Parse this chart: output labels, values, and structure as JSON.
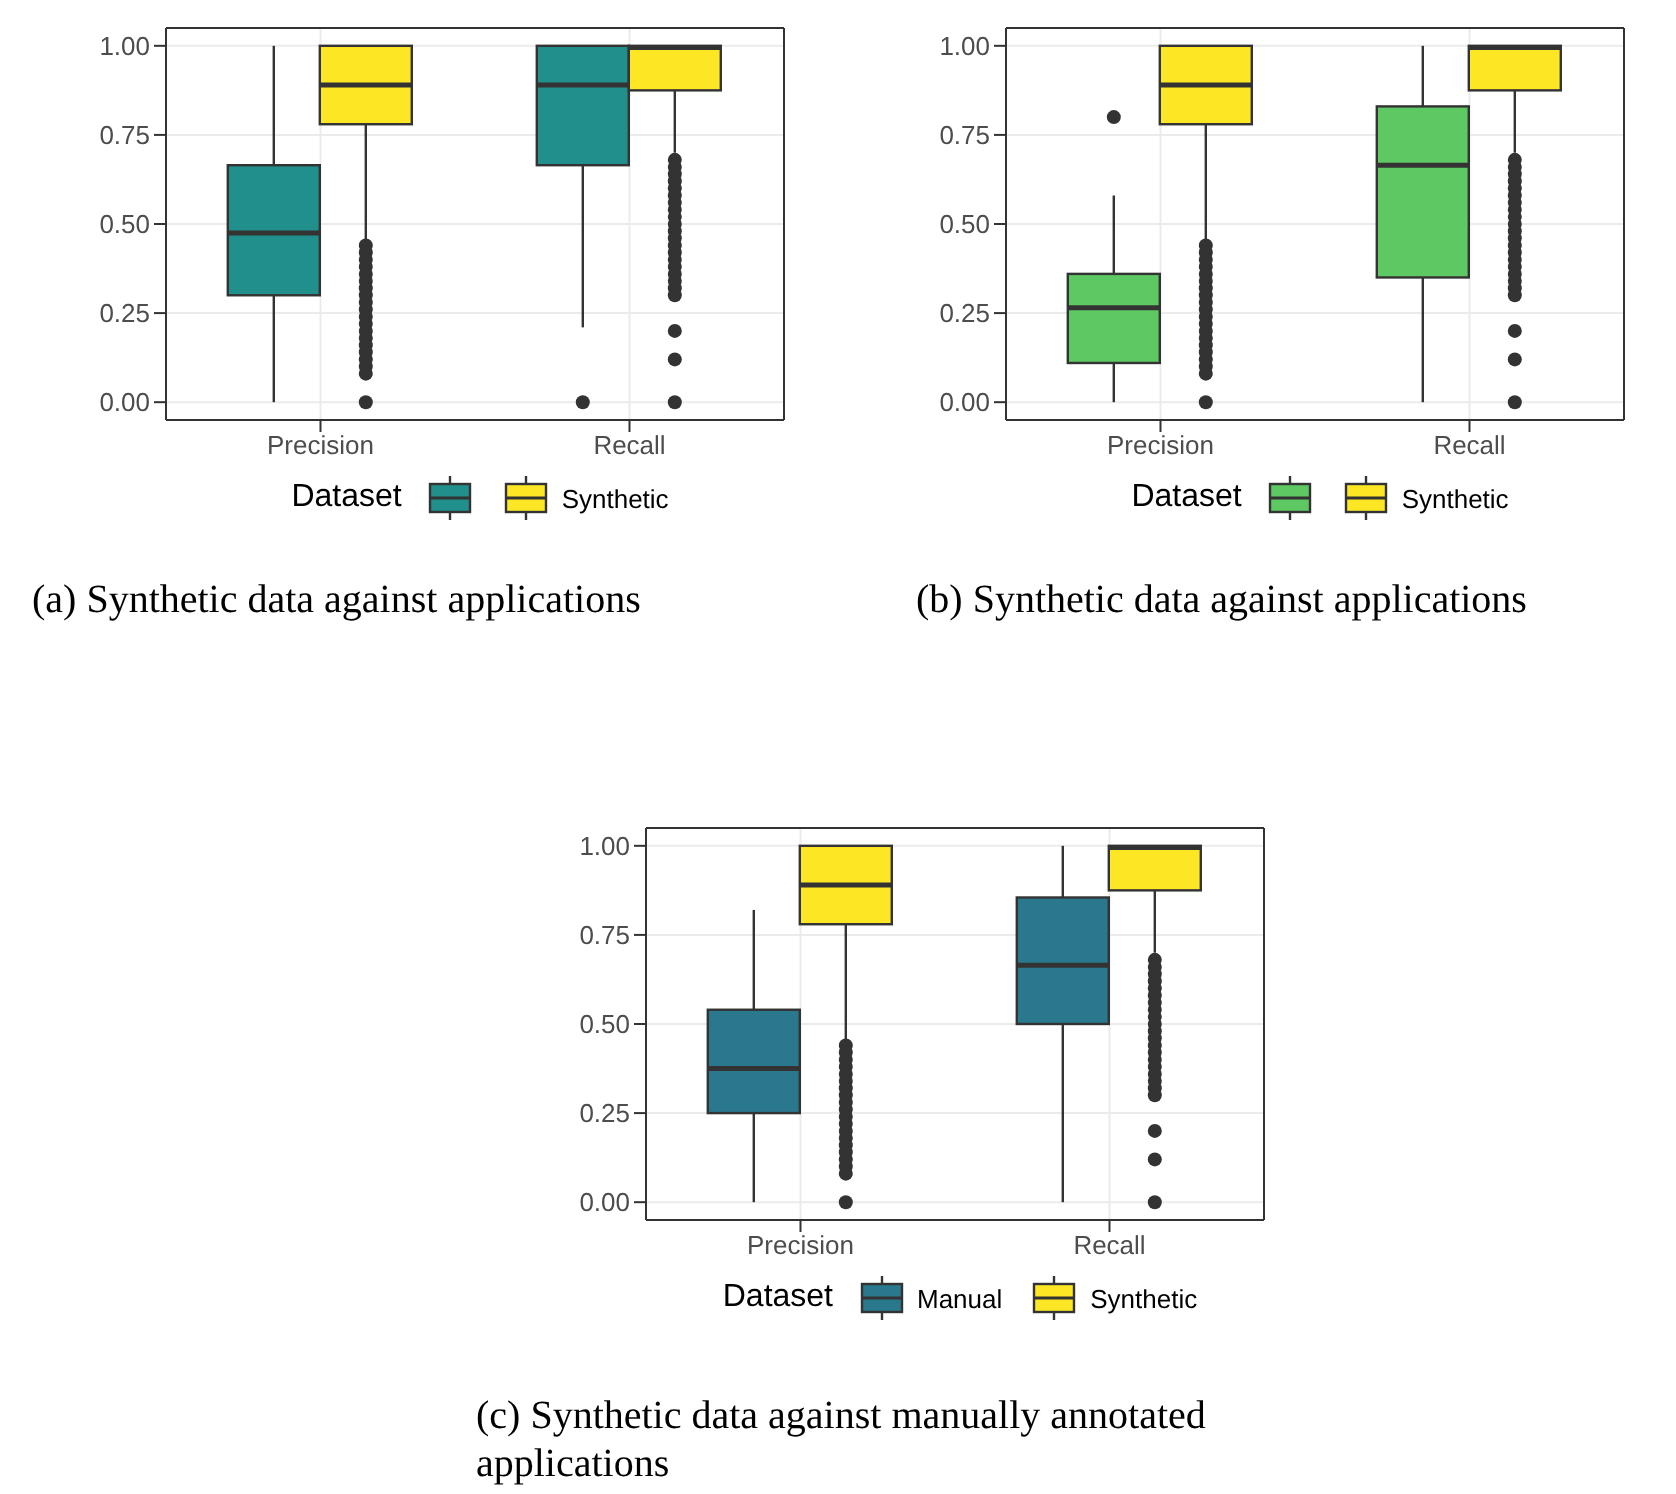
{
  "chart_data": [
    {
      "type": "box",
      "categories": [
        "Precision",
        "Recall"
      ],
      "legend_title": "Dataset",
      "legend": "bottom",
      "grid": true,
      "ylim": [
        -0.05,
        1.05
      ],
      "yticks": [
        {
          "value": 0,
          "label": "0.00"
        },
        {
          "value": 0.25,
          "label": "0.25"
        },
        {
          "value": 0.5,
          "label": "0.50"
        },
        {
          "value": 0.75,
          "label": "0.75"
        },
        {
          "value": 1,
          "label": "1.00"
        }
      ],
      "annotations": [
        "(a) Synthetic data against applications"
      ],
      "series": [
        {
          "color": "#21908c",
          "boxes": [
            {
              "low": 0,
              "q1": 0.3,
              "median": 0.475,
              "q3": 0.665,
              "high": 1
            },
            {
              "low": 0.21,
              "q1": 0.665,
              "median": 0.89,
              "q3": 1,
              "high": 1,
              "outliers": [
                0
              ]
            }
          ]
        },
        {
          "name": "Synthetic",
          "color": "#fde725",
          "boxes": [
            {
              "low": 0.45,
              "q1": 0.78,
              "median": 0.89,
              "q3": 1,
              "high": 1,
              "outliers": [
                0.44,
                0.42,
                0.4,
                0.38,
                0.36,
                0.34,
                0.32,
                0.3,
                0.28,
                0.26,
                0.24,
                0.22,
                0.2,
                0.18,
                0.16,
                0.14,
                0.12,
                0.1,
                0.08,
                0
              ]
            },
            {
              "low": 0.7,
              "q1": 0.875,
              "median": 0.995,
              "q3": 1,
              "high": 1,
              "outliers": [
                0.68,
                0.66,
                0.64,
                0.62,
                0.6,
                0.58,
                0.56,
                0.54,
                0.52,
                0.5,
                0.48,
                0.46,
                0.44,
                0.42,
                0.4,
                0.38,
                0.36,
                0.34,
                0.32,
                0.3,
                0.2,
                0.12,
                0
              ]
            }
          ]
        }
      ]
    },
    {
      "type": "box",
      "categories": [
        "Precision",
        "Recall"
      ],
      "legend_title": "Dataset",
      "legend": "bottom",
      "grid": true,
      "ylim": [
        -0.05,
        1.05
      ],
      "yticks": [
        {
          "value": 0,
          "label": "0.00"
        },
        {
          "value": 0.25,
          "label": "0.25"
        },
        {
          "value": 0.5,
          "label": "0.50"
        },
        {
          "value": 0.75,
          "label": "0.75"
        },
        {
          "value": 1,
          "label": "1.00"
        }
      ],
      "annotations": [
        "(b) Synthetic data against applications"
      ],
      "series": [
        {
          "color": "#5ec962",
          "boxes": [
            {
              "low": 0,
              "q1": 0.11,
              "median": 0.265,
              "q3": 0.36,
              "high": 0.58,
              "outliers": [
                0.8
              ]
            },
            {
              "low": 0,
              "q1": 0.35,
              "median": 0.665,
              "q3": 0.83,
              "high": 1
            }
          ]
        },
        {
          "name": "Synthetic",
          "color": "#fde725",
          "boxes": [
            {
              "low": 0.45,
              "q1": 0.78,
              "median": 0.89,
              "q3": 1,
              "high": 1,
              "outliers": [
                0.44,
                0.42,
                0.4,
                0.38,
                0.36,
                0.34,
                0.32,
                0.3,
                0.28,
                0.26,
                0.24,
                0.22,
                0.2,
                0.18,
                0.16,
                0.14,
                0.12,
                0.1,
                0.08,
                0
              ]
            },
            {
              "low": 0.7,
              "q1": 0.875,
              "median": 0.995,
              "q3": 1,
              "high": 1,
              "outliers": [
                0.68,
                0.66,
                0.64,
                0.62,
                0.6,
                0.58,
                0.56,
                0.54,
                0.52,
                0.5,
                0.48,
                0.46,
                0.44,
                0.42,
                0.4,
                0.38,
                0.36,
                0.34,
                0.32,
                0.3,
                0.2,
                0.12,
                0
              ]
            }
          ]
        }
      ]
    },
    {
      "type": "box",
      "categories": [
        "Precision",
        "Recall"
      ],
      "legend_title": "Dataset",
      "legend": "bottom",
      "grid": true,
      "ylim": [
        -0.05,
        1.05
      ],
      "yticks": [
        {
          "value": 0,
          "label": "0.00"
        },
        {
          "value": 0.25,
          "label": "0.25"
        },
        {
          "value": 0.5,
          "label": "0.50"
        },
        {
          "value": 0.75,
          "label": "0.75"
        },
        {
          "value": 1,
          "label": "1.00"
        }
      ],
      "annotations": [
        "(c) Synthetic data against manually annotated applications"
      ],
      "series": [
        {
          "name": "Manual",
          "color": "#2a788e",
          "boxes": [
            {
              "low": 0,
              "q1": 0.25,
              "median": 0.375,
              "q3": 0.54,
              "high": 0.82
            },
            {
              "low": 0,
              "q1": 0.5,
              "median": 0.665,
              "q3": 0.855,
              "high": 1
            }
          ]
        },
        {
          "name": "Synthetic",
          "color": "#fde725",
          "boxes": [
            {
              "low": 0.45,
              "q1": 0.78,
              "median": 0.89,
              "q3": 1,
              "high": 1,
              "outliers": [
                0.44,
                0.42,
                0.4,
                0.38,
                0.36,
                0.34,
                0.32,
                0.3,
                0.28,
                0.26,
                0.24,
                0.22,
                0.2,
                0.18,
                0.16,
                0.14,
                0.12,
                0.1,
                0.08,
                0
              ]
            },
            {
              "low": 0.7,
              "q1": 0.875,
              "median": 0.995,
              "q3": 1,
              "high": 1,
              "outliers": [
                0.68,
                0.66,
                0.64,
                0.62,
                0.6,
                0.58,
                0.56,
                0.54,
                0.52,
                0.5,
                0.48,
                0.46,
                0.44,
                0.42,
                0.4,
                0.38,
                0.36,
                0.34,
                0.32,
                0.3,
                0.2,
                0.12,
                0
              ]
            }
          ]
        }
      ]
    }
  ]
}
